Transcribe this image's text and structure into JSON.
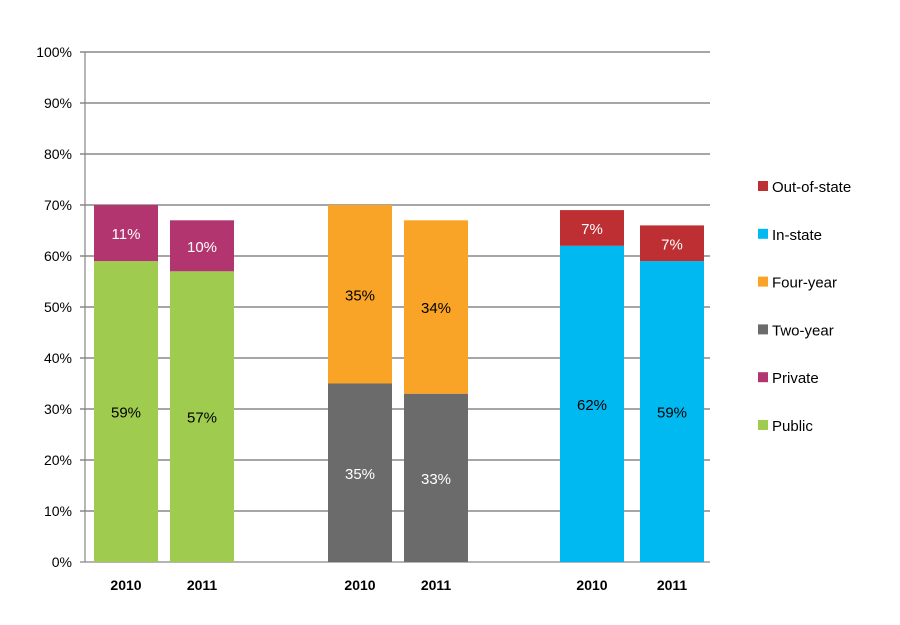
{
  "chart_data": {
    "type": "bar",
    "stacked": true,
    "ylim": [
      0,
      100
    ],
    "y_ticks": [
      "0%",
      "10%",
      "20%",
      "30%",
      "40%",
      "50%",
      "60%",
      "70%",
      "80%",
      "90%",
      "100%"
    ],
    "grid": true,
    "legend_placement": "right",
    "groups": [
      {
        "categories": [
          "2010",
          "2011"
        ],
        "series": [
          {
            "name": "Public",
            "color": "#9FCB4F",
            "values": [
              59,
              57
            ],
            "labels": [
              "59%",
              "57%"
            ],
            "label_color": "#000000"
          },
          {
            "name": "Private",
            "color": "#B2356F",
            "values": [
              11,
              10
            ],
            "labels": [
              "11%",
              "10%"
            ],
            "label_color": "#ffffff"
          }
        ]
      },
      {
        "categories": [
          "2010",
          "2011"
        ],
        "series": [
          {
            "name": "Two-year",
            "color": "#6B6B6B",
            "values": [
              35,
              33
            ],
            "labels": [
              "35%",
              "33%"
            ],
            "label_color": "#ffffff"
          },
          {
            "name": "Four-year",
            "color": "#F9A427",
            "values": [
              35,
              34
            ],
            "labels": [
              "35%",
              "34%"
            ],
            "label_color": "#000000"
          }
        ]
      },
      {
        "categories": [
          "2010",
          "2011"
        ],
        "series": [
          {
            "name": "In-state",
            "color": "#00B9F1",
            "values": [
              62,
              59
            ],
            "labels": [
              "62%",
              "59%"
            ],
            "label_color": "#000000"
          },
          {
            "name": "Out-of-state",
            "color": "#BD2F33",
            "values": [
              7,
              7
            ],
            "labels": [
              "7%",
              "7%"
            ],
            "label_color": "#ffffff"
          }
        ]
      }
    ],
    "legend": [
      {
        "name": "Out-of-state",
        "color": "#BD2F33"
      },
      {
        "name": "In-state",
        "color": "#00B9F1"
      },
      {
        "name": "Four-year",
        "color": "#F9A427"
      },
      {
        "name": "Two-year",
        "color": "#6B6B6B"
      },
      {
        "name": "Private",
        "color": "#B2356F"
      },
      {
        "name": "Public",
        "color": "#9FCB4F"
      }
    ]
  }
}
